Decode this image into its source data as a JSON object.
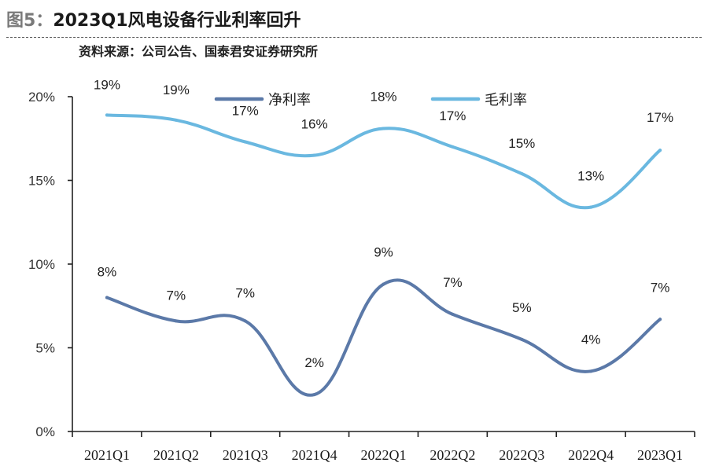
{
  "figure": {
    "label": "图5：",
    "title": "2023Q1风电设备行业利率回升",
    "source": "资料来源：公司公告、国泰君安证券研究所"
  },
  "chart_data": {
    "type": "line",
    "categories": [
      "2021Q1",
      "2021Q2",
      "2021Q3",
      "2021Q4",
      "2022Q1",
      "2022Q2",
      "2022Q3",
      "2022Q4",
      "2023Q1"
    ],
    "y_ticks": [
      "0%",
      "5%",
      "10%",
      "15%",
      "20%"
    ],
    "ylim": [
      0,
      20
    ],
    "ylabel": "",
    "xlabel": "",
    "grid": false,
    "legend_position": "top-center",
    "series": [
      {
        "name": "净利率",
        "color": "#5b79a8",
        "values": [
          8.0,
          6.6,
          6.6,
          2.2,
          8.8,
          7.0,
          5.5,
          3.6,
          6.7
        ],
        "labels": [
          "8%",
          "7%",
          "7%",
          "2%",
          "9%",
          "7%",
          "5%",
          "4%",
          "7%"
        ]
      },
      {
        "name": "毛利率",
        "color": "#6ab8e0",
        "values": [
          18.9,
          18.6,
          17.3,
          16.5,
          18.1,
          17.0,
          15.4,
          13.4,
          16.8
        ],
        "labels": [
          "19%",
          "19%",
          "17%",
          "16%",
          "18%",
          "17%",
          "15%",
          "13%",
          "17%"
        ]
      }
    ]
  }
}
